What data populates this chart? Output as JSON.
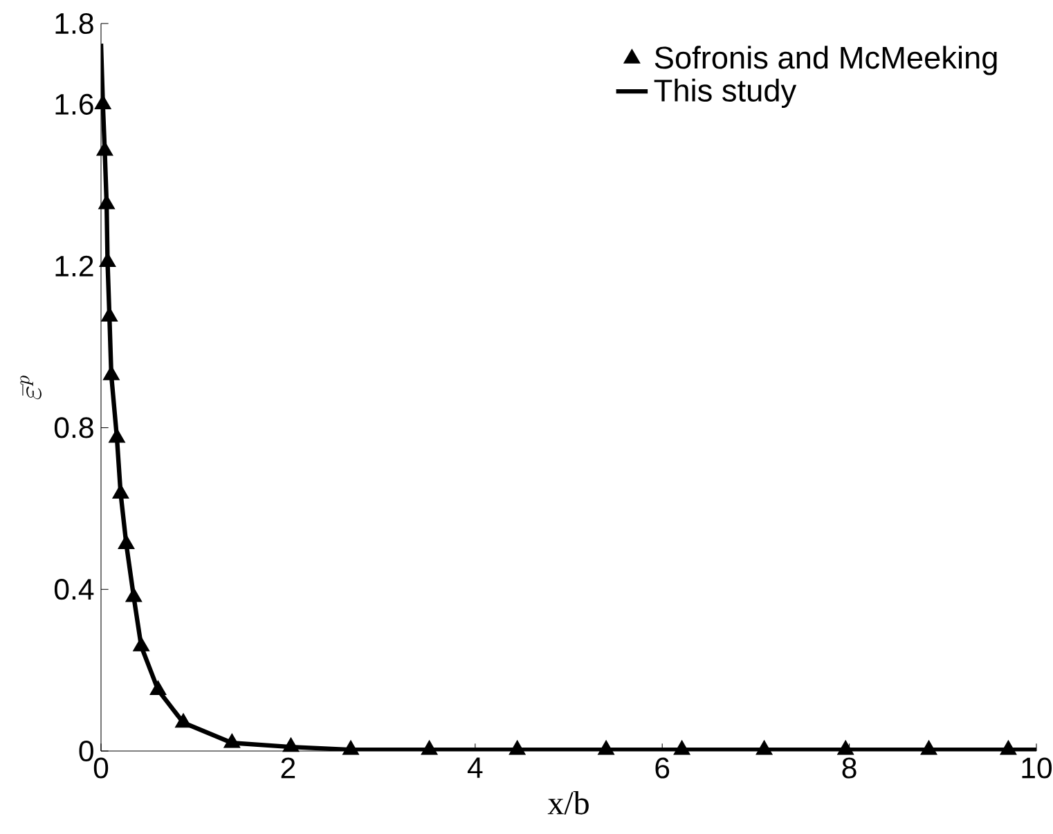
{
  "chart_data": {
    "type": "line",
    "xlabel": "x/b",
    "ylabel": "\\bar{\\varepsilon}^{p}",
    "xlim": [
      0,
      10
    ],
    "ylim": [
      0,
      1.8
    ],
    "xticks": [
      0,
      2,
      4,
      6,
      8,
      10
    ],
    "yticks": [
      0,
      0.4,
      0.8,
      1.2,
      1.6,
      1.8
    ],
    "grid": false,
    "legend": "top right",
    "series": [
      {
        "name": "Sofronis and McMeeking",
        "type": "scatter",
        "marker": "triangle",
        "color": "#000000",
        "x": [
          0.02,
          0.04,
          0.06,
          0.07,
          0.09,
          0.11,
          0.17,
          0.21,
          0.27,
          0.35,
          0.43,
          0.61,
          0.88,
          1.4,
          2.03,
          2.67,
          3.51,
          4.45,
          5.4,
          6.21,
          7.09,
          7.96,
          8.85,
          9.7
        ],
        "values": [
          1.6,
          1.485,
          1.353,
          1.21,
          1.075,
          0.93,
          0.775,
          0.637,
          0.512,
          0.381,
          0.259,
          0.151,
          0.07,
          0.02,
          0.01,
          0.003,
          0.003,
          0.003,
          0.003,
          0.003,
          0.003,
          0.003,
          0.003,
          0.003
        ]
      },
      {
        "name": "This study",
        "type": "line",
        "marker": "none",
        "line_style": "solid",
        "color": "#000000",
        "x": [
          0,
          0.02,
          0.04,
          0.06,
          0.07,
          0.09,
          0.11,
          0.17,
          0.21,
          0.27,
          0.35,
          0.43,
          0.61,
          0.88,
          1.4,
          2.03,
          2.67,
          3.51,
          4.45,
          5.4,
          6.21,
          7.09,
          7.96,
          8.85,
          9.7,
          10
        ],
        "values": [
          1.75,
          1.6,
          1.485,
          1.353,
          1.21,
          1.075,
          0.93,
          0.775,
          0.637,
          0.512,
          0.381,
          0.259,
          0.151,
          0.07,
          0.02,
          0.01,
          0.003,
          0.003,
          0.003,
          0.003,
          0.003,
          0.003,
          0.003,
          0.003,
          0.003,
          0.003
        ]
      }
    ]
  }
}
